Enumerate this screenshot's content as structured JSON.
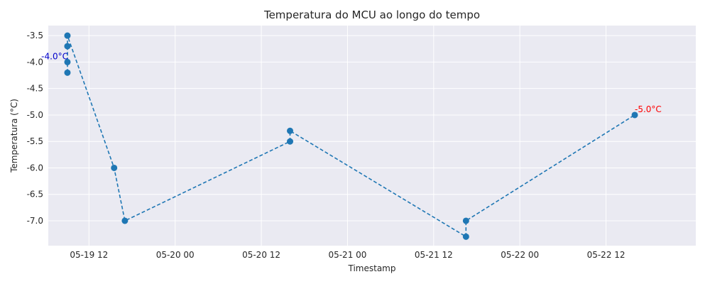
{
  "chart_data": {
    "type": "line",
    "title": "Temperatura do MCU ao longo do tempo",
    "xlabel": "Timestamp",
    "ylabel": "Temperatura (°C)",
    "xlim": [
      "2025-05-19T06:20",
      "2025-05-23T00:30"
    ],
    "ylim": [
      -7.47,
      -3.31
    ],
    "x_ticks": [
      "2025-05-19T12:00",
      "2025-05-20T00:00",
      "2025-05-20T12:00",
      "2025-05-21T00:00",
      "2025-05-21T12:00",
      "2025-05-22T00:00",
      "2025-05-22T12:00"
    ],
    "x_tick_labels": [
      "05-19 12",
      "05-20 00",
      "05-20 12",
      "05-21 00",
      "05-21 12",
      "05-22 00",
      "05-22 12"
    ],
    "y_ticks": [
      -3.5,
      -4.0,
      -4.5,
      -5.0,
      -5.5,
      -6.0,
      -6.5,
      -7.0
    ],
    "y_tick_labels": [
      "-3.5",
      "-4.0",
      "-4.5",
      "-5.0",
      "-5.5",
      "-6.0",
      "-6.5",
      "-7.0"
    ],
    "grid": true,
    "line_style": "dashed",
    "color": "#1f77b4",
    "series": [
      {
        "x": [
          "2025-05-19T09:00",
          "2025-05-19T09:00",
          "2025-05-19T09:00",
          "2025-05-19T09:00",
          "2025-05-19T15:30",
          "2025-05-19T17:00",
          "2025-05-20T16:00",
          "2025-05-20T16:00",
          "2025-05-21T16:30",
          "2025-05-21T16:30",
          "2025-05-22T16:00"
        ],
        "y": [
          -4.2,
          -4.0,
          -3.7,
          -3.5,
          -6.0,
          -7.0,
          -5.5,
          -5.3,
          -7.3,
          -7.0,
          -5.0
        ]
      }
    ],
    "annotations": [
      {
        "text": "-4.0°C",
        "x": "2025-05-19T09:00",
        "y": -4.0,
        "color": "#0000cc"
      },
      {
        "text": "-5.0°C",
        "x": "2025-05-22T16:00",
        "y": -5.0,
        "color": "#ff0000"
      }
    ]
  }
}
